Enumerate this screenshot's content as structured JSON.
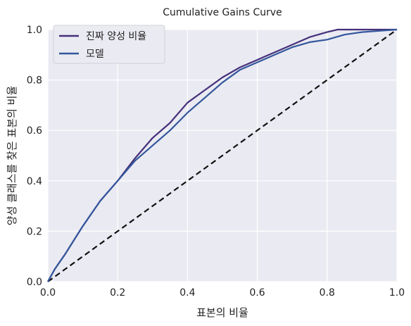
{
  "chart_data": {
    "type": "line",
    "title": "Cumulative Gains Curve",
    "xlabel": "표본의 비율",
    "ylabel": "양성 클래스를 찾은 표본의 비율",
    "xlim": [
      0.0,
      1.0
    ],
    "ylim": [
      0.0,
      1.0
    ],
    "xticks": [
      "0.0",
      "0.2",
      "0.4",
      "0.6",
      "0.8",
      "1.0"
    ],
    "yticks": [
      "0.0",
      "0.2",
      "0.4",
      "0.6",
      "0.8",
      "1.0"
    ],
    "grid": true,
    "legend_position": "top-left",
    "series": [
      {
        "name": "진짜 양성 비율",
        "color": "#45307a",
        "x": [
          0.0,
          0.02,
          0.05,
          0.1,
          0.15,
          0.2,
          0.25,
          0.3,
          0.35,
          0.4,
          0.45,
          0.5,
          0.55,
          0.6,
          0.65,
          0.7,
          0.75,
          0.8,
          0.83,
          0.9,
          0.95,
          1.0
        ],
        "y": [
          0.0,
          0.05,
          0.11,
          0.22,
          0.32,
          0.4,
          0.49,
          0.57,
          0.63,
          0.71,
          0.76,
          0.81,
          0.85,
          0.88,
          0.91,
          0.94,
          0.97,
          0.99,
          1.0,
          1.0,
          1.0,
          1.0
        ]
      },
      {
        "name": "모델",
        "color": "#33579b",
        "x": [
          0.0,
          0.02,
          0.05,
          0.1,
          0.15,
          0.2,
          0.25,
          0.3,
          0.35,
          0.4,
          0.45,
          0.5,
          0.55,
          0.6,
          0.65,
          0.7,
          0.75,
          0.8,
          0.85,
          0.9,
          0.95,
          1.0
        ],
        "y": [
          0.0,
          0.05,
          0.11,
          0.22,
          0.32,
          0.4,
          0.48,
          0.54,
          0.6,
          0.67,
          0.73,
          0.79,
          0.84,
          0.87,
          0.9,
          0.93,
          0.95,
          0.96,
          0.98,
          0.99,
          0.995,
          1.0
        ]
      }
    ],
    "baseline": {
      "color": "#111111",
      "x": [
        0.0,
        1.0
      ],
      "y": [
        0.0,
        1.0
      ],
      "dash": true
    }
  }
}
